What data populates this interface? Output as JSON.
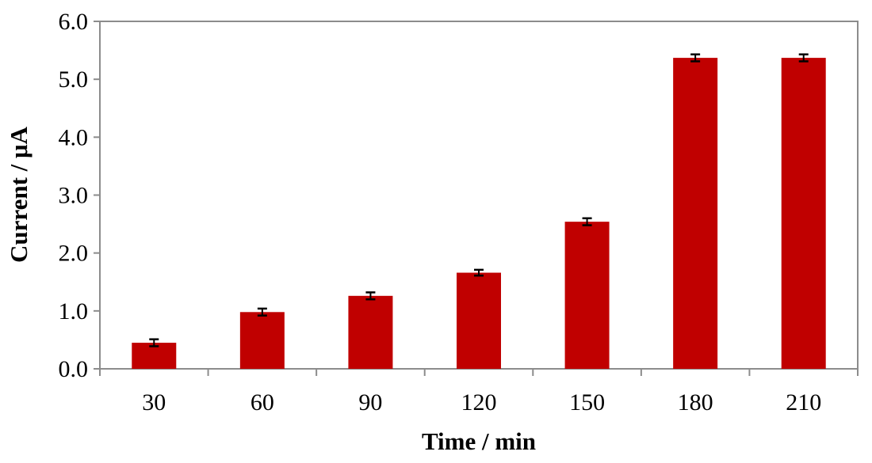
{
  "chart_data": {
    "type": "bar",
    "title": "",
    "xlabel": "Time / min",
    "ylabel": "Current / μA",
    "categories": [
      "30",
      "60",
      "90",
      "120",
      "150",
      "180",
      "210"
    ],
    "series": [
      {
        "values": [
          0.45,
          0.98,
          1.26,
          1.66,
          2.54,
          5.37,
          5.37
        ],
        "errors": [
          0.06,
          0.06,
          0.06,
          0.05,
          0.06,
          0.06,
          0.06
        ],
        "color": "#c00000"
      }
    ],
    "ylim": [
      0,
      6
    ],
    "yticks": [
      "0.0",
      "1.0",
      "2.0",
      "3.0",
      "4.0",
      "5.0",
      "6.0"
    ],
    "grid": false,
    "legend": "none"
  }
}
